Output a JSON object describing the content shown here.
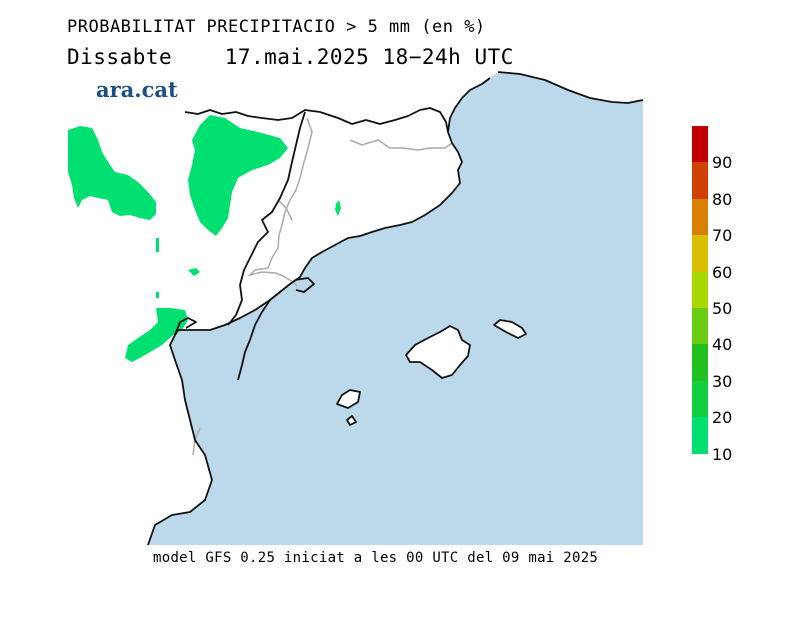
{
  "header": {
    "title": "PROBABILITAT PRECIPITACIO > 5 mm (en %)",
    "day": "Dissabte",
    "date": "17.mai.2025",
    "period": "18−24h UTC",
    "logo": "ara.cat"
  },
  "legend": {
    "levels": [
      {
        "value": "90",
        "color": "#c00000"
      },
      {
        "value": "80",
        "color": "#d04000"
      },
      {
        "value": "70",
        "color": "#d98000"
      },
      {
        "value": "60",
        "color": "#d8c000"
      },
      {
        "value": "50",
        "color": "#a8d800"
      },
      {
        "value": "40",
        "color": "#68cc10"
      },
      {
        "value": "30",
        "color": "#20c020"
      },
      {
        "value": "20",
        "color": "#10d040"
      },
      {
        "value": "10",
        "color": "#00e070"
      }
    ]
  },
  "map": {
    "sea_color": "#bcd8eb",
    "land_color": "#ffffff",
    "precip_color": "#00e070"
  },
  "footer": {
    "text": "model GFS 0.25 iniciat a les 00 UTC del 09 mai 2025"
  }
}
